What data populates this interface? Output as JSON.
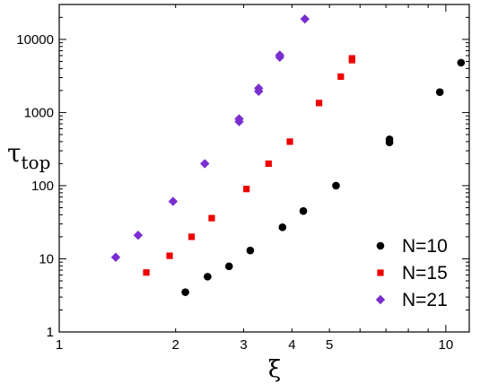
{
  "chart_data": {
    "type": "scatter",
    "x_scale": "log",
    "y_scale": "log",
    "xlim": [
      1,
      11.5
    ],
    "ylim": [
      1,
      30000
    ],
    "xticks": [
      {
        "value": 1,
        "label": "1"
      },
      {
        "value": 2,
        "label": "2"
      },
      {
        "value": 3,
        "label": "3"
      },
      {
        "value": 4,
        "label": "4"
      },
      {
        "value": 5,
        "label": "5"
      },
      {
        "value": 10,
        "label": "10"
      }
    ],
    "yticks": [
      {
        "value": 1,
        "label": "1"
      },
      {
        "value": 10,
        "label": "10"
      },
      {
        "value": 100,
        "label": "100"
      },
      {
        "value": 1000,
        "label": "1000"
      },
      {
        "value": 10000,
        "label": "10000"
      }
    ],
    "xlabel": "ξ",
    "ylabel": "τ",
    "ylabel_sub": "top",
    "grid": false,
    "legend_position": "bottom-right",
    "series": [
      {
        "name": "N=10",
        "color": "#000000",
        "marker": "circle",
        "points": [
          {
            "x": 2.12,
            "y": 3.5
          },
          {
            "x": 2.42,
            "y": 5.7
          },
          {
            "x": 2.75,
            "y": 7.9
          },
          {
            "x": 3.12,
            "y": 13
          },
          {
            "x": 3.78,
            "y": 27
          },
          {
            "x": 4.28,
            "y": 45
          },
          {
            "x": 5.2,
            "y": 100
          },
          {
            "x": 7.15,
            "y": 390
          },
          {
            "x": 7.15,
            "y": 430
          },
          {
            "x": 9.65,
            "y": 1900
          },
          {
            "x": 10.95,
            "y": 4800
          }
        ]
      },
      {
        "name": "N=15",
        "color": "#ee0000",
        "marker": "square",
        "points": [
          {
            "x": 1.68,
            "y": 6.5
          },
          {
            "x": 1.93,
            "y": 11
          },
          {
            "x": 2.2,
            "y": 20
          },
          {
            "x": 2.48,
            "y": 36
          },
          {
            "x": 3.05,
            "y": 90
          },
          {
            "x": 3.48,
            "y": 200
          },
          {
            "x": 3.95,
            "y": 400
          },
          {
            "x": 4.7,
            "y": 1350
          },
          {
            "x": 5.35,
            "y": 3100
          },
          {
            "x": 5.72,
            "y": 5200
          },
          {
            "x": 5.72,
            "y": 5500
          }
        ]
      },
      {
        "name": "N=21",
        "color": "#7a2ed0",
        "marker": "diamond",
        "points": [
          {
            "x": 1.4,
            "y": 10.5
          },
          {
            "x": 1.6,
            "y": 21
          },
          {
            "x": 1.97,
            "y": 61
          },
          {
            "x": 2.38,
            "y": 200
          },
          {
            "x": 2.92,
            "y": 750
          },
          {
            "x": 2.92,
            "y": 820
          },
          {
            "x": 3.28,
            "y": 1950
          },
          {
            "x": 3.28,
            "y": 2150
          },
          {
            "x": 3.72,
            "y": 5700
          },
          {
            "x": 3.72,
            "y": 6100
          },
          {
            "x": 4.32,
            "y": 19000
          }
        ]
      }
    ]
  }
}
